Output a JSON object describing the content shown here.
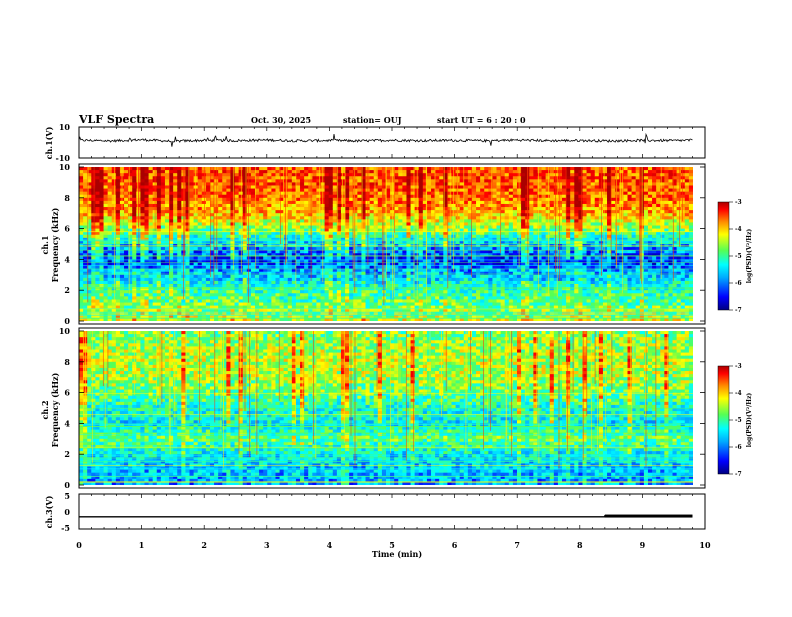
{
  "header": {
    "title": "VLF Spectra",
    "date": "Oct. 30, 2025",
    "station": "station= OUJ",
    "start": "start  UT =   6  : 20 : 0"
  },
  "colors": {
    "spectrogram_colormap": [
      "#000080",
      "#0000ff",
      "#00aaff",
      "#00ffff",
      "#55ff55",
      "#ffff00",
      "#ff8800",
      "#ff0000",
      "#aa0000"
    ],
    "waveform": "#000000",
    "axes": "#000000"
  },
  "chart_data": [
    {
      "type": "line",
      "panel": "ch1-waveform",
      "ylabel": "ch.1(V)",
      "ylim": [
        -10,
        10
      ],
      "y_ticks": [
        "10",
        "-10"
      ],
      "x": [
        0,
        0.5,
        1,
        1.5,
        2,
        2.5,
        3,
        3.5,
        4,
        4.5,
        5,
        5.5,
        6,
        6.5,
        7,
        7.5,
        8,
        8.5,
        9,
        9.5,
        9.8
      ],
      "y": [
        1.5,
        1.0,
        1.8,
        0.8,
        1.4,
        1.2,
        1.6,
        1.1,
        1.3,
        1.0,
        1.5,
        1.2,
        1.4,
        1.1,
        1.6,
        1.2,
        1.3,
        1.0,
        1.4,
        1.2,
        1.5
      ]
    },
    {
      "type": "heatmap",
      "panel": "ch1-spectrogram",
      "ylabel": "ch.1\nFrequency (kHz)",
      "ylim": [
        0,
        10
      ],
      "y_ticks": [
        "0",
        "2",
        "4",
        "6",
        "8",
        "10"
      ],
      "zlim": [
        -7,
        -3
      ],
      "colorbar_ticks": [
        "-3",
        "-4",
        "-5",
        "-6",
        "-7"
      ],
      "colorbar_label": "log(PSD)(V²/Hz)",
      "freq_levels_kHz": [
        0,
        1,
        2,
        3,
        4,
        5,
        6,
        7,
        8,
        9,
        10
      ],
      "log_psd_by_freq": [
        -4.6,
        -5.0,
        -5.3,
        -5.8,
        -6.4,
        -5.8,
        -4.9,
        -4.2,
        -3.9,
        -3.8,
        -3.8
      ]
    },
    {
      "type": "heatmap",
      "panel": "ch2-spectrogram",
      "ylabel": "ch.2\nFrequency (kHz)",
      "ylim": [
        0,
        10
      ],
      "y_ticks": [
        "0",
        "2",
        "4",
        "6",
        "8",
        "10"
      ],
      "zlim": [
        -7,
        -3
      ],
      "colorbar_ticks": [
        "-3",
        "-4",
        "-5",
        "-6",
        "-7"
      ],
      "colorbar_label": "log(PSD)(V²/Hz)",
      "freq_levels_kHz": [
        0,
        1,
        2,
        3,
        4,
        5,
        6,
        7,
        8,
        9,
        10
      ],
      "log_psd_by_freq": [
        -6.0,
        -5.8,
        -5.6,
        -5.0,
        -5.6,
        -5.4,
        -5.0,
        -4.8,
        -4.7,
        -4.8,
        -5.0
      ]
    },
    {
      "type": "line",
      "panel": "ch3-signal",
      "ylabel": "ch.3(V)",
      "ylim": [
        -5,
        5
      ],
      "y_ticks": [
        "5",
        "0",
        "-5"
      ],
      "x": [
        0,
        8.4,
        8.4,
        9.8
      ],
      "y": [
        -1.5,
        -1.5,
        -1.3,
        -1.3
      ]
    }
  ],
  "x_axis": {
    "label": "Time (min)",
    "xlim": [
      0,
      10
    ],
    "ticks": [
      "0",
      "1",
      "2",
      "3",
      "4",
      "5",
      "6",
      "7",
      "8",
      "9",
      "10"
    ]
  }
}
